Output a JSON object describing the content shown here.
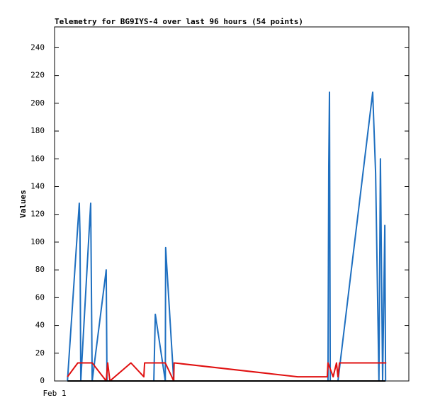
{
  "chart_data": {
    "type": "line",
    "title": "Telemetry for BG9IYS-4 over last 96 hours (54 points)",
    "y_label": "Values",
    "xlim": [
      0,
      96
    ],
    "xticks": [
      {
        "value": 0,
        "label": "Feb 1"
      }
    ],
    "ylim": [
      0,
      255
    ],
    "yticks": [
      0,
      20,
      40,
      60,
      80,
      100,
      120,
      140,
      160,
      180,
      200,
      220,
      240
    ],
    "series": [
      {
        "color": "#1e6fc0",
        "x": [
          3.5,
          6.3,
          6.7,
          6.9,
          7.1,
          9.8,
          10.2,
          14.0,
          14.2,
          26.9,
          27.3,
          30.0,
          30.1,
          32.3,
          74.1,
          74.3,
          74.5,
          74.7,
          76.8,
          86.2,
          87.0,
          87.9,
          88.3,
          88.9,
          89.5,
          89.7
        ],
        "values": [
          0,
          112,
          128,
          106,
          0,
          128,
          0,
          80,
          0,
          0,
          48,
          0,
          96,
          0,
          0,
          155,
          208,
          0,
          0,
          208,
          150,
          0,
          160,
          0,
          112,
          0
        ]
      },
      {
        "color": "#e01010",
        "x": [
          3.5,
          6.3,
          10.2,
          14.0,
          14.4,
          15.0,
          20.7,
          24.2,
          24.4,
          30.0,
          32.3,
          32.4,
          65.9,
          73.9,
          74.1,
          75.5,
          76.4,
          76.8,
          77.2,
          89.9
        ],
        "values": [
          3,
          13,
          13,
          0,
          13,
          0,
          13,
          3,
          13,
          13,
          0,
          13,
          3,
          3,
          13,
          3,
          13,
          3,
          13,
          13
        ]
      },
      {
        "color": "#000000",
        "x": [
          3.5,
          89.7
        ],
        "values": [
          0,
          0
        ]
      }
    ]
  }
}
